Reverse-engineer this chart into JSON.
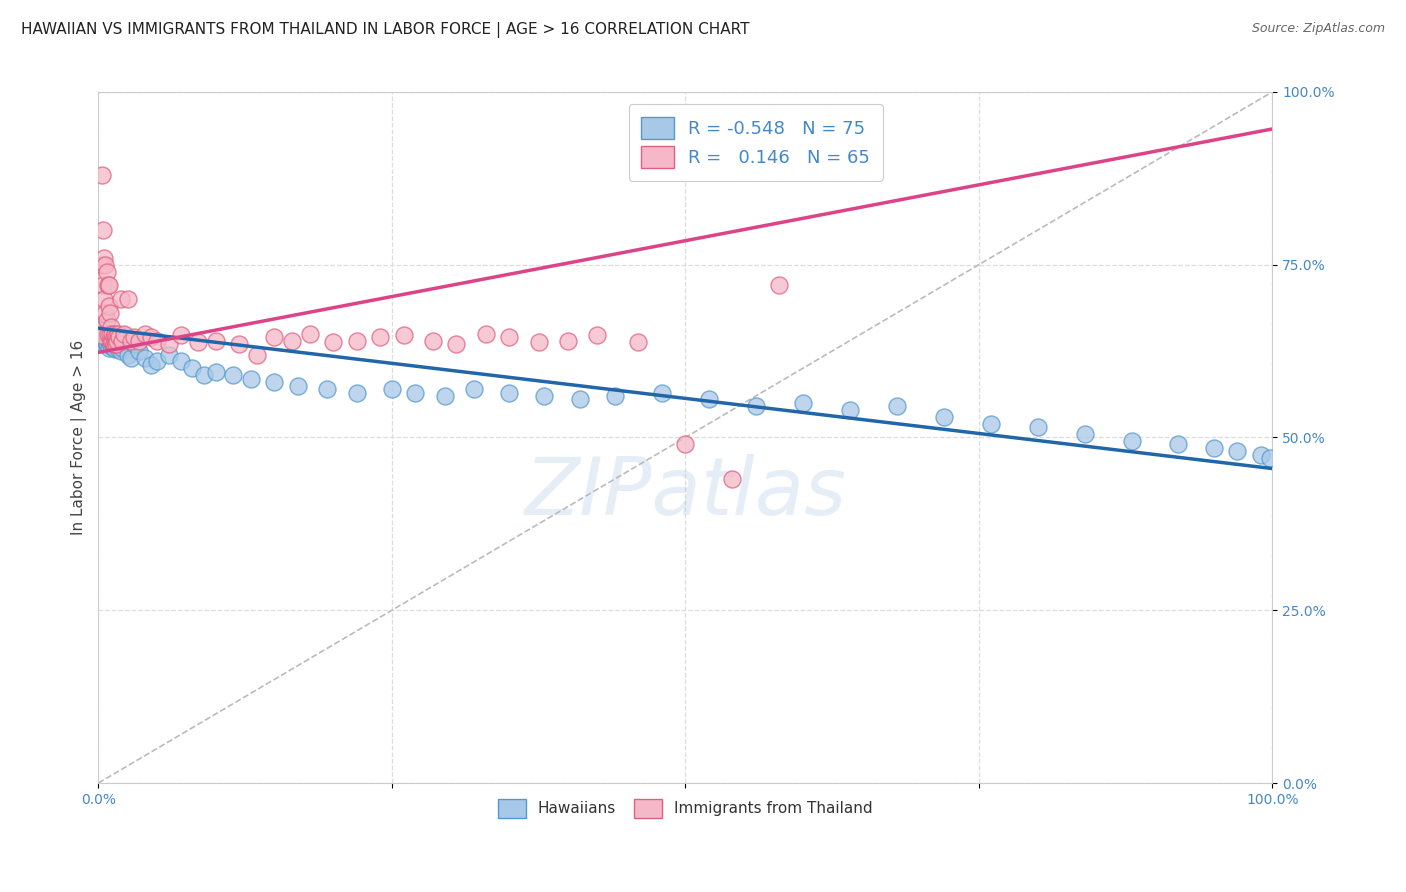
{
  "title": "HAWAIIAN VS IMMIGRANTS FROM THAILAND IN LABOR FORCE | AGE > 16 CORRELATION CHART",
  "source": "Source: ZipAtlas.com",
  "ylabel": "In Labor Force | Age > 16",
  "xlim": [
    0,
    1
  ],
  "ylim": [
    0,
    1
  ],
  "legend_r_hawaiians": "-0.548",
  "legend_n_hawaiians": "75",
  "legend_r_thailand": "0.146",
  "legend_n_thailand": "65",
  "blue_scatter_color": "#a8c8e8",
  "blue_edge_color": "#5599cc",
  "pink_scatter_color": "#f5b8c8",
  "pink_edge_color": "#e06080",
  "blue_line_color": "#2266aa",
  "pink_line_color": "#dd4488",
  "pink_dashed_color": "#e09090",
  "dashed_line_color": "#bbbbbb",
  "axis_tick_color": "#4488cc",
  "background_color": "#ffffff",
  "grid_color": "#dddddd",
  "hawaiians_x": [
    0.001,
    0.002,
    0.003,
    0.003,
    0.004,
    0.005,
    0.005,
    0.006,
    0.006,
    0.007,
    0.007,
    0.008,
    0.008,
    0.009,
    0.009,
    0.01,
    0.01,
    0.011,
    0.011,
    0.012,
    0.012,
    0.013,
    0.013,
    0.014,
    0.014,
    0.015,
    0.015,
    0.016,
    0.017,
    0.018,
    0.019,
    0.02,
    0.022,
    0.025,
    0.028,
    0.03,
    0.035,
    0.04,
    0.045,
    0.05,
    0.06,
    0.07,
    0.08,
    0.09,
    0.1,
    0.115,
    0.13,
    0.15,
    0.17,
    0.195,
    0.22,
    0.25,
    0.27,
    0.295,
    0.32,
    0.35,
    0.38,
    0.41,
    0.44,
    0.48,
    0.52,
    0.56,
    0.6,
    0.64,
    0.68,
    0.72,
    0.76,
    0.8,
    0.84,
    0.88,
    0.92,
    0.95,
    0.97,
    0.99,
    0.998
  ],
  "hawaiians_y": [
    0.655,
    0.66,
    0.645,
    0.64,
    0.65,
    0.645,
    0.635,
    0.65,
    0.64,
    0.645,
    0.635,
    0.65,
    0.64,
    0.645,
    0.63,
    0.648,
    0.638,
    0.642,
    0.632,
    0.646,
    0.636,
    0.648,
    0.63,
    0.642,
    0.628,
    0.644,
    0.634,
    0.638,
    0.628,
    0.635,
    0.625,
    0.63,
    0.648,
    0.62,
    0.615,
    0.635,
    0.625,
    0.615,
    0.605,
    0.61,
    0.62,
    0.61,
    0.6,
    0.59,
    0.595,
    0.59,
    0.585,
    0.58,
    0.575,
    0.57,
    0.565,
    0.57,
    0.565,
    0.56,
    0.57,
    0.565,
    0.56,
    0.555,
    0.56,
    0.565,
    0.555,
    0.545,
    0.55,
    0.54,
    0.545,
    0.53,
    0.52,
    0.515,
    0.505,
    0.495,
    0.49,
    0.485,
    0.48,
    0.475,
    0.47
  ],
  "thailand_x": [
    0.001,
    0.002,
    0.003,
    0.003,
    0.004,
    0.004,
    0.005,
    0.005,
    0.006,
    0.006,
    0.007,
    0.007,
    0.008,
    0.008,
    0.009,
    0.009,
    0.01,
    0.01,
    0.011,
    0.011,
    0.012,
    0.012,
    0.013,
    0.013,
    0.014,
    0.014,
    0.015,
    0.015,
    0.016,
    0.017,
    0.018,
    0.019,
    0.02,
    0.022,
    0.025,
    0.028,
    0.03,
    0.035,
    0.04,
    0.045,
    0.05,
    0.06,
    0.07,
    0.085,
    0.1,
    0.12,
    0.135,
    0.15,
    0.165,
    0.18,
    0.2,
    0.22,
    0.24,
    0.26,
    0.285,
    0.305,
    0.33,
    0.35,
    0.375,
    0.4,
    0.425,
    0.46,
    0.5,
    0.54,
    0.58
  ],
  "thailand_y": [
    0.655,
    0.648,
    0.88,
    0.75,
    0.8,
    0.72,
    0.76,
    0.7,
    0.75,
    0.68,
    0.74,
    0.67,
    0.72,
    0.65,
    0.69,
    0.72,
    0.65,
    0.68,
    0.64,
    0.66,
    0.64,
    0.65,
    0.645,
    0.635,
    0.64,
    0.65,
    0.645,
    0.635,
    0.64,
    0.65,
    0.645,
    0.7,
    0.64,
    0.65,
    0.7,
    0.64,
    0.645,
    0.64,
    0.65,
    0.645,
    0.64,
    0.635,
    0.648,
    0.638,
    0.64,
    0.635,
    0.62,
    0.645,
    0.64,
    0.65,
    0.638,
    0.64,
    0.645,
    0.648,
    0.64,
    0.635,
    0.65,
    0.645,
    0.638,
    0.64,
    0.648,
    0.638,
    0.49,
    0.44,
    0.72
  ],
  "blue_line_x0": 0.0,
  "blue_line_y0": 0.658,
  "blue_line_x1": 1.0,
  "blue_line_y1": 0.455,
  "pink_line_x0": 0.0,
  "pink_line_y0": 0.623,
  "pink_line_x1": 0.3,
  "pink_line_y1": 0.72,
  "title_fontsize": 11,
  "axis_label_fontsize": 11,
  "tick_fontsize": 10,
  "legend_fontsize": 13
}
